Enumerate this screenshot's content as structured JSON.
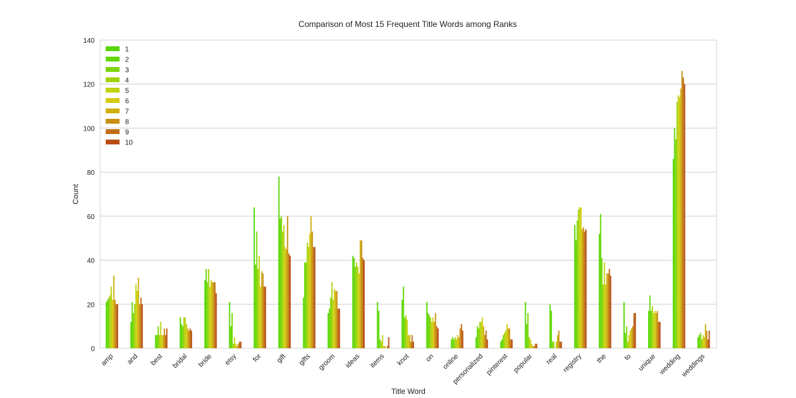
{
  "chart_data": {
    "type": "bar",
    "title": "Comparison of Most 15 Frequent Title Words among Ranks",
    "xlabel": "Title Word",
    "ylabel": "Count",
    "ylim": [
      0,
      140
    ],
    "yticks": [
      0,
      20,
      40,
      60,
      80,
      100,
      120,
      140
    ],
    "grid": true,
    "legend_position": "top-left",
    "categories": [
      "amp",
      "and",
      "best",
      "bridal",
      "bride",
      "etsy",
      "for",
      "gift",
      "gifts",
      "groom",
      "ideas",
      "items",
      "knot",
      "on",
      "online",
      "personalized",
      "pinterest",
      "popular",
      "real",
      "registry",
      "the",
      "to",
      "unique",
      "wedding",
      "weddings"
    ],
    "series": [
      {
        "name": "1",
        "color": "#58d708",
        "values": [
          21,
          12,
          6,
          14,
          31,
          21,
          64,
          78,
          23,
          16,
          42,
          21,
          22,
          21,
          4,
          5,
          3,
          21,
          20,
          56,
          52,
          21,
          17,
          86,
          5
        ]
      },
      {
        "name": "2",
        "color": "#64d808",
        "values": [
          22,
          21,
          6,
          11,
          36,
          10,
          38,
          59,
          39,
          18,
          41,
          17,
          28,
          16,
          5,
          10,
          4,
          11,
          17,
          49,
          61,
          7,
          24,
          100,
          6
        ]
      },
      {
        "name": "3",
        "color": "#7dd60a",
        "values": [
          23,
          16,
          10,
          10,
          30,
          16,
          53,
          60,
          39,
          23,
          37,
          4,
          14,
          15,
          4,
          9,
          6,
          16,
          3,
          58,
          41,
          10,
          17,
          95,
          7
        ]
      },
      {
        "name": "4",
        "color": "#a2d40c",
        "values": [
          24,
          20,
          6,
          14,
          36,
          2,
          36,
          53,
          48,
          30,
          39,
          3,
          15,
          14,
          5,
          12,
          7,
          5,
          3,
          63,
          29,
          3,
          19,
          112,
          4
        ]
      },
      {
        "name": "5",
        "color": "#c0d30e",
        "values": [
          28,
          29,
          12,
          14,
          28,
          5,
          42,
          56,
          46,
          22,
          37,
          6,
          13,
          12,
          4,
          12,
          8,
          4,
          0,
          64,
          39,
          6,
          16,
          115,
          6
        ]
      },
      {
        "name": "6",
        "color": "#d3cb10",
        "values": [
          22,
          26,
          6,
          11,
          31,
          2,
          28,
          46,
          52,
          27,
          34,
          1,
          6,
          14,
          6,
          14,
          11,
          2,
          3,
          64,
          29,
          8,
          17,
          114,
          5
        ]
      },
      {
        "name": "7",
        "color": "#cfae12",
        "values": [
          33,
          32,
          6,
          9,
          30,
          1,
          35,
          45,
          60,
          26,
          49,
          1,
          6,
          12,
          5,
          10,
          9,
          1,
          6,
          54,
          34,
          9,
          16,
          118,
          11
        ]
      },
      {
        "name": "8",
        "color": "#c88f12",
        "values": [
          22,
          20,
          9,
          8,
          30,
          2,
          34,
          60,
          53,
          26,
          49,
          0,
          3,
          16,
          9,
          6,
          9,
          1,
          8,
          55,
          34,
          10,
          17,
          126,
          8
        ]
      },
      {
        "name": "9",
        "color": "#c16e14",
        "values": [
          20,
          23,
          6,
          9,
          30,
          3,
          28,
          43,
          46,
          18,
          41,
          1,
          6,
          10,
          11,
          8,
          4,
          2,
          3,
          53,
          36,
          16,
          12,
          123,
          4
        ]
      },
      {
        "name": "10",
        "color": "#b84e14",
        "values": [
          20,
          20,
          9,
          8,
          25,
          3,
          28,
          42,
          46,
          18,
          40,
          5,
          3,
          9,
          8,
          4,
          4,
          2,
          3,
          54,
          33,
          16,
          12,
          120,
          8
        ]
      }
    ]
  }
}
